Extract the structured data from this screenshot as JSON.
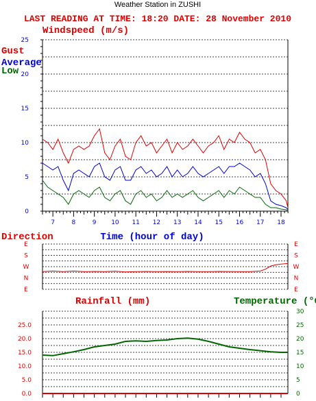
{
  "station_title": "Weather Station in ZUSHI",
  "reading_line": "LAST READING AT TIME: 18:20  DATE: 28 November 2010",
  "colors": {
    "red": "#dd0000",
    "blue": "#0000cc",
    "green": "#006600",
    "grid": "#000000"
  },
  "chart_data": [
    {
      "type": "line",
      "title": "Windspeed (m/s)",
      "xlabel": "Time (hour of day)",
      "ylim": [
        0,
        25
      ],
      "yticks": [
        "0",
        "5",
        "10",
        "15",
        "20",
        "25"
      ],
      "xticks": [
        "7",
        "8",
        "9",
        "10",
        "11",
        "12",
        "13",
        "14",
        "15",
        "16",
        "17",
        "18"
      ],
      "xlim": [
        6.5,
        18.33
      ],
      "series": [
        {
          "name": "Gust",
          "color": "#dd0000",
          "x": [
            6.5,
            6.75,
            7.0,
            7.25,
            7.5,
            7.75,
            8.0,
            8.25,
            8.5,
            8.75,
            9.0,
            9.25,
            9.5,
            9.75,
            10.0,
            10.25,
            10.5,
            10.75,
            11.0,
            11.25,
            11.5,
            11.75,
            12.0,
            12.25,
            12.5,
            12.75,
            13.0,
            13.25,
            13.5,
            13.75,
            14.0,
            14.25,
            14.5,
            14.75,
            15.0,
            15.25,
            15.5,
            15.75,
            16.0,
            16.25,
            16.5,
            16.75,
            17.0,
            17.25,
            17.5,
            17.75,
            18.0,
            18.25,
            18.33
          ],
          "y": [
            10.5,
            10.0,
            9.0,
            10.5,
            8.5,
            7.0,
            9.0,
            9.5,
            9.0,
            9.5,
            11.0,
            12.0,
            8.5,
            7.5,
            9.5,
            10.5,
            8.0,
            7.5,
            10.0,
            11.0,
            9.5,
            10.0,
            8.5,
            9.5,
            10.5,
            8.5,
            10.0,
            9.0,
            9.5,
            10.5,
            9.5,
            8.5,
            9.5,
            10.0,
            11.0,
            9.0,
            10.5,
            10.0,
            11.5,
            10.5,
            10.0,
            8.5,
            9.0,
            7.5,
            4.0,
            3.0,
            2.5,
            1.5,
            0.5
          ]
        },
        {
          "name": "Average",
          "color": "#0000cc",
          "x": [
            6.5,
            6.75,
            7.0,
            7.25,
            7.5,
            7.75,
            8.0,
            8.25,
            8.5,
            8.75,
            9.0,
            9.25,
            9.5,
            9.75,
            10.0,
            10.25,
            10.5,
            10.75,
            11.0,
            11.25,
            11.5,
            11.75,
            12.0,
            12.25,
            12.5,
            12.75,
            13.0,
            13.25,
            13.5,
            13.75,
            14.0,
            14.25,
            14.5,
            14.75,
            15.0,
            15.25,
            15.5,
            15.75,
            16.0,
            16.25,
            16.5,
            16.75,
            17.0,
            17.25,
            17.5,
            17.75,
            18.0,
            18.25,
            18.33
          ],
          "y": [
            7.0,
            6.5,
            6.0,
            6.5,
            4.5,
            3.0,
            5.5,
            6.0,
            5.5,
            5.0,
            6.5,
            7.0,
            5.0,
            4.5,
            6.0,
            6.5,
            4.5,
            4.5,
            6.0,
            6.5,
            5.5,
            6.0,
            5.0,
            5.5,
            6.5,
            5.0,
            6.0,
            5.0,
            5.5,
            6.5,
            5.5,
            5.0,
            5.5,
            6.0,
            6.5,
            5.5,
            6.5,
            6.5,
            7.0,
            6.5,
            6.0,
            5.0,
            5.5,
            4.0,
            1.5,
            1.0,
            0.8,
            0.5,
            0.2
          ]
        },
        {
          "name": "Low",
          "color": "#006600",
          "x": [
            6.5,
            6.75,
            7.0,
            7.25,
            7.5,
            7.75,
            8.0,
            8.25,
            8.5,
            8.75,
            9.0,
            9.25,
            9.5,
            9.75,
            10.0,
            10.25,
            10.5,
            10.75,
            11.0,
            11.25,
            11.5,
            11.75,
            12.0,
            12.25,
            12.5,
            12.75,
            13.0,
            13.25,
            13.5,
            13.75,
            14.0,
            14.25,
            14.5,
            14.75,
            15.0,
            15.25,
            15.5,
            15.75,
            16.0,
            16.25,
            16.5,
            16.75,
            17.0,
            17.25,
            17.5,
            17.75,
            18.0,
            18.25,
            18.33
          ],
          "y": [
            4.5,
            3.5,
            3.0,
            2.5,
            2.0,
            1.0,
            2.5,
            3.0,
            2.5,
            2.0,
            3.0,
            3.5,
            2.0,
            1.5,
            2.5,
            3.0,
            1.5,
            1.0,
            2.5,
            3.0,
            2.0,
            2.5,
            1.5,
            2.0,
            3.0,
            2.0,
            2.5,
            2.0,
            2.5,
            3.0,
            2.0,
            1.5,
            2.0,
            2.5,
            3.0,
            2.0,
            3.0,
            2.5,
            3.5,
            3.0,
            2.5,
            2.0,
            2.0,
            1.0,
            0.5,
            0.5,
            0.3,
            0.2,
            0.0
          ]
        }
      ]
    },
    {
      "type": "line",
      "title": "Direction",
      "yticks_left": [
        "E",
        "N",
        "W",
        "S",
        "E"
      ],
      "yticks_right": [
        "E",
        "N",
        "W",
        "S",
        "E"
      ],
      "ylim": [
        0,
        360
      ],
      "series": [
        {
          "name": "Direction",
          "color": "#dd0000",
          "x": [
            6.5,
            7.0,
            7.5,
            8.0,
            8.5,
            9.0,
            9.5,
            10.0,
            10.5,
            11.0,
            11.5,
            12.0,
            12.5,
            13.0,
            13.5,
            14.0,
            14.5,
            15.0,
            15.5,
            16.0,
            16.5,
            17.0,
            17.25,
            17.5,
            17.75,
            18.0,
            18.33
          ],
          "y": [
            140,
            145,
            140,
            145,
            140,
            142,
            140,
            144,
            138,
            140,
            142,
            140,
            141,
            140,
            142,
            140,
            140,
            142,
            141,
            140,
            140,
            145,
            160,
            185,
            195,
            200,
            205
          ]
        }
      ]
    },
    {
      "type": "line",
      "title": "Rainfall (mm)",
      "ylim": [
        0,
        30
      ],
      "yticks_left": [
        "0.0",
        "5.0",
        "10.0",
        "15.0",
        "20.0",
        "25.0"
      ],
      "series": [
        {
          "name": "Rainfall (mm)",
          "color": "#dd0000",
          "x": [
            6.5,
            18.33
          ],
          "y": [
            0,
            0
          ]
        }
      ]
    },
    {
      "type": "line",
      "title": "Temperature (°C)",
      "ylim": [
        0,
        30
      ],
      "yticks_right": [
        "0",
        "5",
        "10",
        "15",
        "20",
        "25",
        "30"
      ],
      "series": [
        {
          "name": "Temperature",
          "color": "#006600",
          "x": [
            6.5,
            7.0,
            7.5,
            8.0,
            8.5,
            9.0,
            9.5,
            10.0,
            10.5,
            11.0,
            11.5,
            12.0,
            12.5,
            13.0,
            13.5,
            14.0,
            14.5,
            15.0,
            15.5,
            16.0,
            16.5,
            17.0,
            17.5,
            18.0,
            18.33
          ],
          "y": [
            14.0,
            13.8,
            14.5,
            15.2,
            16.0,
            17.0,
            17.5,
            18.0,
            19.0,
            19.2,
            19.0,
            19.3,
            19.5,
            20.0,
            20.2,
            19.8,
            19.0,
            18.0,
            17.0,
            16.5,
            16.0,
            15.6,
            15.2,
            15.0,
            15.0
          ]
        }
      ]
    }
  ]
}
